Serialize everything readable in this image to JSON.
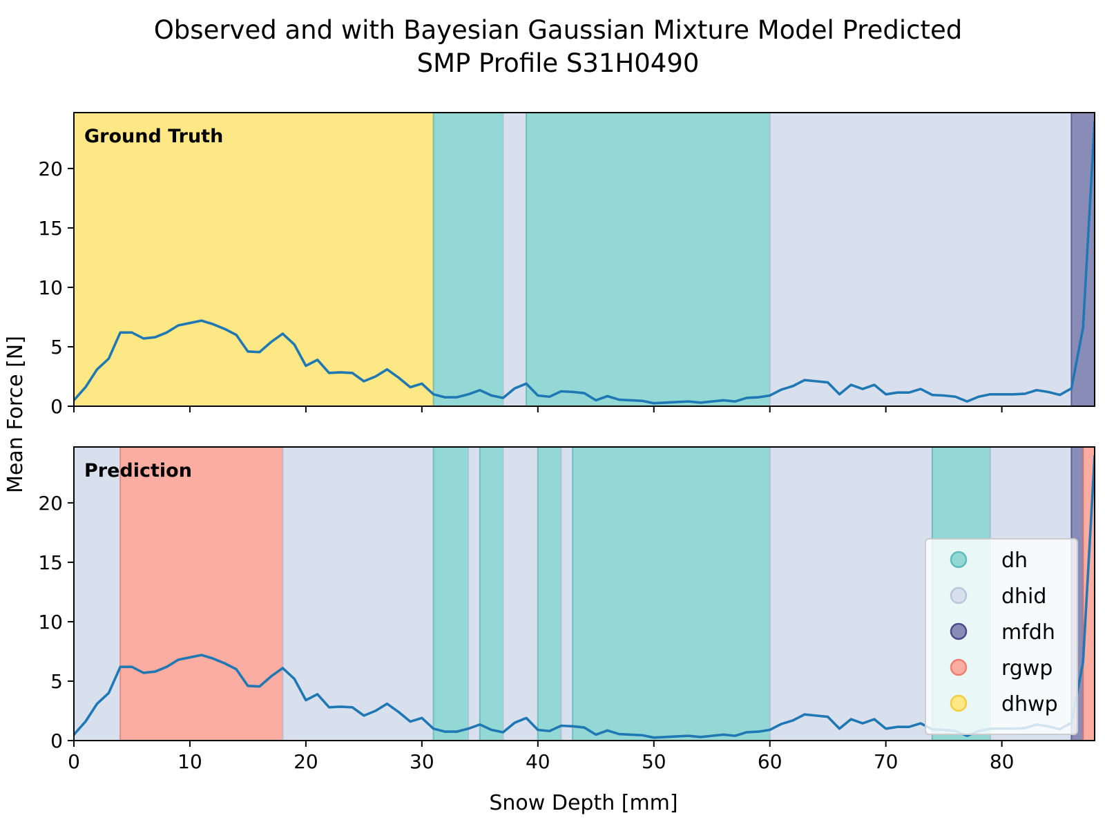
{
  "chart_data": {
    "type": "line",
    "title": "Observed and with Bayesian Gaussian Mixture Model Predicted",
    "subtitle": "SMP Profile S31H0490",
    "xlabel": "Snow Depth [mm]",
    "ylabel": "Mean Force [N]",
    "xlim": [
      0,
      88
    ],
    "ylim": [
      0,
      24.7
    ],
    "xticks": [
      0,
      10,
      20,
      30,
      40,
      50,
      60,
      70,
      80
    ],
    "yticks": [
      0,
      5,
      10,
      15,
      20
    ],
    "grid": false,
    "legend_position": "lower-right",
    "colors": {
      "line": "#1f77b4",
      "dh": "#93d8d4",
      "dh_edge": "#5fbcbc",
      "dhid": "#d7e0ec",
      "dhid_edge": "#b9c6da",
      "mfdh": "#8a8cb8",
      "mfdh_edge": "#4a4a8a",
      "rgwp": "#faada0",
      "rgwp_edge": "#f07d70",
      "dhwp": "#fde885",
      "dhwp_edge": "#f5cc40"
    },
    "legend": [
      {
        "label": "dh",
        "class": "dh"
      },
      {
        "label": "dhid",
        "class": "dhid"
      },
      {
        "label": "mfdh",
        "class": "mfdh"
      },
      {
        "label": "rgwp",
        "class": "rgwp"
      },
      {
        "label": "dhwp",
        "class": "dhwp"
      }
    ],
    "series": [
      {
        "x": [
          0,
          1,
          2,
          3,
          4,
          5,
          6,
          7,
          8,
          9,
          10,
          11,
          12,
          13,
          14,
          15,
          16,
          17,
          18,
          19,
          20,
          21,
          22,
          23,
          24,
          25,
          26,
          27,
          28,
          29,
          30,
          31,
          32,
          33,
          34,
          35,
          36,
          37,
          38,
          39,
          40,
          41,
          42,
          43,
          44,
          45,
          46,
          47,
          48,
          49,
          50,
          51,
          52,
          53,
          54,
          55,
          56,
          57,
          58,
          59,
          60,
          61,
          62,
          63,
          64,
          65,
          66,
          67,
          68,
          69,
          70,
          71,
          72,
          73,
          74,
          75,
          76,
          77,
          78,
          79,
          80,
          81,
          82,
          83,
          84,
          85,
          86,
          87,
          88
        ],
        "y": [
          0.5,
          1.6,
          3.1,
          4.0,
          6.2,
          6.2,
          5.7,
          5.8,
          6.2,
          6.8,
          7.0,
          7.2,
          6.9,
          6.5,
          6.0,
          4.6,
          4.55,
          5.4,
          6.1,
          5.2,
          3.4,
          3.9,
          2.8,
          2.85,
          2.8,
          2.1,
          2.5,
          3.1,
          2.4,
          1.6,
          1.9,
          1.0,
          0.75,
          0.75,
          1.0,
          1.35,
          0.9,
          0.7,
          1.5,
          1.9,
          0.9,
          0.8,
          1.25,
          1.2,
          1.1,
          0.5,
          0.85,
          0.55,
          0.5,
          0.45,
          0.25,
          0.3,
          0.35,
          0.4,
          0.3,
          0.4,
          0.5,
          0.4,
          0.7,
          0.75,
          0.9,
          1.4,
          1.7,
          2.2,
          2.1,
          2.0,
          1.0,
          1.8,
          1.45,
          1.8,
          1.0,
          1.15,
          1.15,
          1.45,
          0.95,
          0.9,
          0.8,
          0.4,
          0.8,
          1.0,
          1.0,
          1.0,
          1.05,
          1.35,
          1.2,
          0.95,
          1.5,
          6.6,
          24.0
        ]
      }
    ],
    "panels": [
      {
        "label": "Ground Truth",
        "segments": [
          {
            "start": 0,
            "end": 31,
            "class": "dhwp"
          },
          {
            "start": 31,
            "end": 37,
            "class": "dh"
          },
          {
            "start": 37,
            "end": 39,
            "class": "dhid"
          },
          {
            "start": 39,
            "end": 60,
            "class": "dh"
          },
          {
            "start": 60,
            "end": 86,
            "class": "dhid"
          },
          {
            "start": 86,
            "end": 88,
            "class": "mfdh"
          }
        ]
      },
      {
        "label": "Prediction",
        "segments": [
          {
            "start": 0,
            "end": 4,
            "class": "dhid"
          },
          {
            "start": 4,
            "end": 18,
            "class": "rgwp"
          },
          {
            "start": 18,
            "end": 31,
            "class": "dhid"
          },
          {
            "start": 31,
            "end": 34,
            "class": "dh"
          },
          {
            "start": 34,
            "end": 35,
            "class": "dhid"
          },
          {
            "start": 35,
            "end": 37,
            "class": "dh"
          },
          {
            "start": 37,
            "end": 40,
            "class": "dhid"
          },
          {
            "start": 40,
            "end": 42,
            "class": "dh"
          },
          {
            "start": 42,
            "end": 43,
            "class": "dhid"
          },
          {
            "start": 43,
            "end": 60,
            "class": "dh"
          },
          {
            "start": 60,
            "end": 74,
            "class": "dhid"
          },
          {
            "start": 74,
            "end": 79,
            "class": "dh"
          },
          {
            "start": 79,
            "end": 86,
            "class": "dhid"
          },
          {
            "start": 86,
            "end": 87,
            "class": "mfdh"
          },
          {
            "start": 87,
            "end": 88,
            "class": "rgwp"
          }
        ]
      }
    ]
  }
}
